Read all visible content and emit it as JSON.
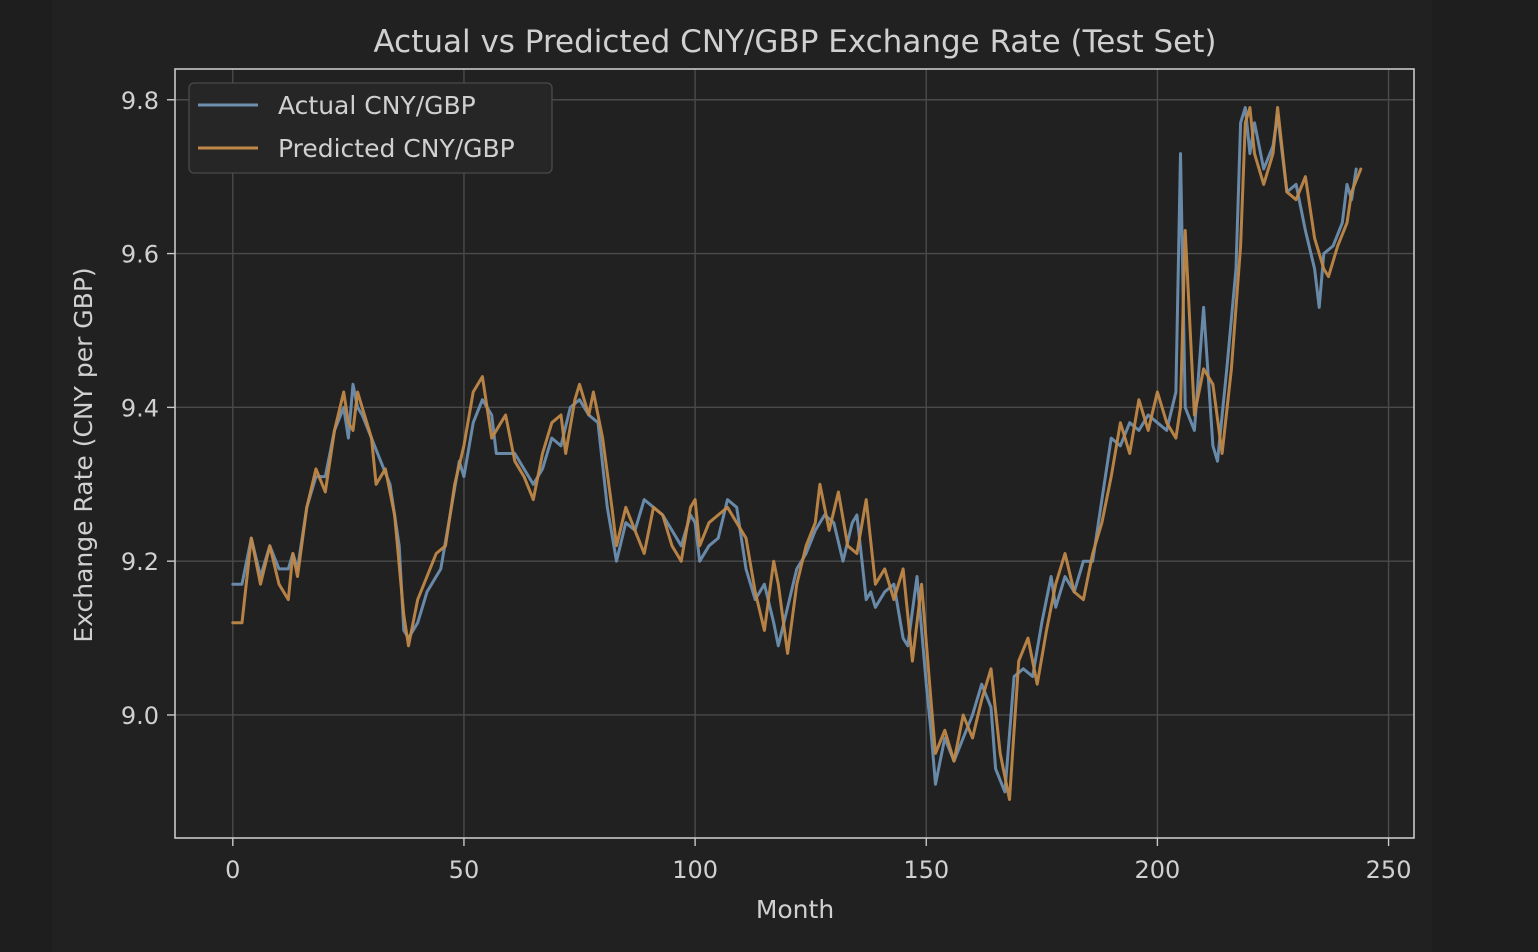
{
  "chart_data": {
    "type": "line",
    "title": "Actual vs Predicted CNY/GBP Exchange Rate (Test Set)",
    "xlabel": "Month",
    "ylabel": "Exchange Rate (CNY per GBP)",
    "xlim": [
      -12.5,
      255.5
    ],
    "ylim": [
      8.84,
      9.84
    ],
    "xticks": [
      0,
      50,
      100,
      150,
      200,
      250
    ],
    "yticks": [
      9.0,
      9.2,
      9.4,
      9.6,
      9.8
    ],
    "xtick_labels": [
      "0",
      "50",
      "100",
      "150",
      "200",
      "250"
    ],
    "ytick_labels": [
      "9.0",
      "9.2",
      "9.4",
      "9.6",
      "9.8"
    ],
    "grid": true,
    "legend_position": "top-left",
    "colors": {
      "background": "#1e1e1e",
      "plot_bg": "#212121",
      "axes": "#c8c8c8",
      "grid": "#4a4a4a",
      "text": "#d0d0d0",
      "legend_bg": "#262626",
      "legend_border": "#4a4a4a"
    },
    "series": [
      {
        "name": "Actual CNY/GBP",
        "color": "#6d8fb0",
        "anchors": [
          [
            0,
            9.17
          ],
          [
            2,
            9.17
          ],
          [
            4,
            9.23
          ],
          [
            6,
            9.18
          ],
          [
            8,
            9.22
          ],
          [
            10,
            9.19
          ],
          [
            12,
            9.19
          ],
          [
            13,
            9.21
          ],
          [
            14,
            9.19
          ],
          [
            16,
            9.27
          ],
          [
            18,
            9.31
          ],
          [
            20,
            9.31
          ],
          [
            22,
            9.37
          ],
          [
            24,
            9.4
          ],
          [
            25,
            9.36
          ],
          [
            26,
            9.43
          ],
          [
            27,
            9.4
          ],
          [
            28,
            9.39
          ],
          [
            30,
            9.36
          ],
          [
            32,
            9.33
          ],
          [
            34,
            9.3
          ],
          [
            36,
            9.22
          ],
          [
            37,
            9.11
          ],
          [
            38,
            9.1
          ],
          [
            40,
            9.12
          ],
          [
            42,
            9.16
          ],
          [
            44,
            9.18
          ],
          [
            45,
            9.19
          ],
          [
            47,
            9.26
          ],
          [
            49,
            9.33
          ],
          [
            50,
            9.31
          ],
          [
            52,
            9.38
          ],
          [
            54,
            9.41
          ],
          [
            56,
            9.39
          ],
          [
            57,
            9.34
          ],
          [
            59,
            9.34
          ],
          [
            61,
            9.34
          ],
          [
            63,
            9.32
          ],
          [
            65,
            9.3
          ],
          [
            67,
            9.32
          ],
          [
            69,
            9.36
          ],
          [
            71,
            9.35
          ],
          [
            73,
            9.4
          ],
          [
            75,
            9.41
          ],
          [
            77,
            9.39
          ],
          [
            79,
            9.38
          ],
          [
            81,
            9.27
          ],
          [
            83,
            9.2
          ],
          [
            85,
            9.25
          ],
          [
            87,
            9.24
          ],
          [
            89,
            9.28
          ],
          [
            91,
            9.27
          ],
          [
            93,
            9.26
          ],
          [
            95,
            9.24
          ],
          [
            97,
            9.22
          ],
          [
            99,
            9.26
          ],
          [
            100,
            9.25
          ],
          [
            101,
            9.2
          ],
          [
            103,
            9.22
          ],
          [
            105,
            9.23
          ],
          [
            107,
            9.28
          ],
          [
            109,
            9.27
          ],
          [
            111,
            9.19
          ],
          [
            113,
            9.15
          ],
          [
            115,
            9.17
          ],
          [
            117,
            9.12
          ],
          [
            118,
            9.09
          ],
          [
            120,
            9.14
          ],
          [
            122,
            9.19
          ],
          [
            124,
            9.21
          ],
          [
            126,
            9.24
          ],
          [
            128,
            9.26
          ],
          [
            130,
            9.25
          ],
          [
            132,
            9.2
          ],
          [
            134,
            9.25
          ],
          [
            135,
            9.26
          ],
          [
            137,
            9.15
          ],
          [
            138,
            9.16
          ],
          [
            139,
            9.14
          ],
          [
            141,
            9.16
          ],
          [
            143,
            9.17
          ],
          [
            145,
            9.1
          ],
          [
            146,
            9.09
          ],
          [
            148,
            9.18
          ],
          [
            150,
            9.04
          ],
          [
            151,
            8.98
          ],
          [
            152,
            8.91
          ],
          [
            154,
            8.97
          ],
          [
            156,
            8.94
          ],
          [
            158,
            8.97
          ],
          [
            160,
            9.0
          ],
          [
            162,
            9.04
          ],
          [
            164,
            9.01
          ],
          [
            165,
            8.93
          ],
          [
            167,
            8.9
          ],
          [
            169,
            9.05
          ],
          [
            171,
            9.06
          ],
          [
            173,
            9.05
          ],
          [
            175,
            9.12
          ],
          [
            177,
            9.18
          ],
          [
            178,
            9.14
          ],
          [
            180,
            9.18
          ],
          [
            182,
            9.16
          ],
          [
            184,
            9.2
          ],
          [
            186,
            9.2
          ],
          [
            188,
            9.28
          ],
          [
            190,
            9.36
          ],
          [
            192,
            9.35
          ],
          [
            194,
            9.38
          ],
          [
            196,
            9.37
          ],
          [
            198,
            9.39
          ],
          [
            200,
            9.38
          ],
          [
            202,
            9.37
          ],
          [
            204,
            9.42
          ],
          [
            205,
            9.73
          ],
          [
            206,
            9.4
          ],
          [
            208,
            9.37
          ],
          [
            210,
            9.53
          ],
          [
            212,
            9.35
          ],
          [
            213,
            9.33
          ],
          [
            215,
            9.45
          ],
          [
            217,
            9.58
          ],
          [
            218,
            9.77
          ],
          [
            219,
            9.79
          ],
          [
            220,
            9.73
          ],
          [
            221,
            9.77
          ],
          [
            223,
            9.71
          ],
          [
            225,
            9.74
          ],
          [
            226,
            9.78
          ],
          [
            228,
            9.68
          ],
          [
            230,
            9.69
          ],
          [
            232,
            9.63
          ],
          [
            234,
            9.58
          ],
          [
            235,
            9.53
          ],
          [
            236,
            9.6
          ],
          [
            238,
            9.61
          ],
          [
            240,
            9.64
          ],
          [
            241,
            9.69
          ],
          [
            242,
            9.67
          ],
          [
            243,
            9.71
          ]
        ]
      },
      {
        "name": "Predicted CNY/GBP",
        "color": "#c08848",
        "anchors": [
          [
            0,
            9.12
          ],
          [
            2,
            9.12
          ],
          [
            4,
            9.23
          ],
          [
            6,
            9.17
          ],
          [
            8,
            9.22
          ],
          [
            10,
            9.17
          ],
          [
            12,
            9.15
          ],
          [
            13,
            9.21
          ],
          [
            14,
            9.18
          ],
          [
            16,
            9.27
          ],
          [
            18,
            9.32
          ],
          [
            20,
            9.29
          ],
          [
            22,
            9.37
          ],
          [
            24,
            9.42
          ],
          [
            25,
            9.38
          ],
          [
            26,
            9.37
          ],
          [
            27,
            9.42
          ],
          [
            28,
            9.4
          ],
          [
            30,
            9.36
          ],
          [
            31,
            9.3
          ],
          [
            33,
            9.32
          ],
          [
            35,
            9.26
          ],
          [
            37,
            9.13
          ],
          [
            38,
            9.09
          ],
          [
            40,
            9.15
          ],
          [
            42,
            9.18
          ],
          [
            44,
            9.21
          ],
          [
            46,
            9.22
          ],
          [
            48,
            9.3
          ],
          [
            50,
            9.35
          ],
          [
            52,
            9.42
          ],
          [
            54,
            9.44
          ],
          [
            56,
            9.36
          ],
          [
            58,
            9.38
          ],
          [
            59,
            9.39
          ],
          [
            61,
            9.33
          ],
          [
            63,
            9.31
          ],
          [
            65,
            9.28
          ],
          [
            67,
            9.34
          ],
          [
            69,
            9.38
          ],
          [
            71,
            9.39
          ],
          [
            72,
            9.34
          ],
          [
            74,
            9.41
          ],
          [
            75,
            9.43
          ],
          [
            77,
            9.39
          ],
          [
            78,
            9.42
          ],
          [
            80,
            9.36
          ],
          [
            82,
            9.27
          ],
          [
            83,
            9.22
          ],
          [
            85,
            9.27
          ],
          [
            87,
            9.24
          ],
          [
            89,
            9.21
          ],
          [
            91,
            9.27
          ],
          [
            93,
            9.26
          ],
          [
            95,
            9.22
          ],
          [
            97,
            9.2
          ],
          [
            99,
            9.27
          ],
          [
            100,
            9.28
          ],
          [
            101,
            9.22
          ],
          [
            103,
            9.25
          ],
          [
            105,
            9.26
          ],
          [
            107,
            9.27
          ],
          [
            109,
            9.25
          ],
          [
            111,
            9.23
          ],
          [
            113,
            9.16
          ],
          [
            115,
            9.11
          ],
          [
            117,
            9.2
          ],
          [
            118,
            9.17
          ],
          [
            120,
            9.08
          ],
          [
            122,
            9.17
          ],
          [
            124,
            9.22
          ],
          [
            126,
            9.25
          ],
          [
            127,
            9.3
          ],
          [
            129,
            9.24
          ],
          [
            131,
            9.29
          ],
          [
            133,
            9.22
          ],
          [
            135,
            9.21
          ],
          [
            137,
            9.28
          ],
          [
            139,
            9.17
          ],
          [
            141,
            9.19
          ],
          [
            143,
            9.15
          ],
          [
            145,
            9.19
          ],
          [
            147,
            9.07
          ],
          [
            149,
            9.17
          ],
          [
            151,
            9.02
          ],
          [
            152,
            8.95
          ],
          [
            154,
            8.98
          ],
          [
            156,
            8.94
          ],
          [
            158,
            9.0
          ],
          [
            160,
            8.97
          ],
          [
            162,
            9.02
          ],
          [
            164,
            9.06
          ],
          [
            166,
            8.95
          ],
          [
            168,
            8.89
          ],
          [
            170,
            9.07
          ],
          [
            172,
            9.1
          ],
          [
            174,
            9.04
          ],
          [
            176,
            9.11
          ],
          [
            178,
            9.17
          ],
          [
            180,
            9.21
          ],
          [
            182,
            9.16
          ],
          [
            184,
            9.15
          ],
          [
            186,
            9.21
          ],
          [
            188,
            9.25
          ],
          [
            190,
            9.31
          ],
          [
            192,
            9.38
          ],
          [
            194,
            9.34
          ],
          [
            196,
            9.41
          ],
          [
            198,
            9.37
          ],
          [
            200,
            9.42
          ],
          [
            202,
            9.38
          ],
          [
            204,
            9.36
          ],
          [
            205,
            9.4
          ],
          [
            206,
            9.63
          ],
          [
            208,
            9.39
          ],
          [
            210,
            9.45
          ],
          [
            212,
            9.43
          ],
          [
            214,
            9.34
          ],
          [
            216,
            9.45
          ],
          [
            218,
            9.61
          ],
          [
            219,
            9.77
          ],
          [
            220,
            9.79
          ],
          [
            221,
            9.73
          ],
          [
            223,
            9.69
          ],
          [
            225,
            9.73
          ],
          [
            226,
            9.79
          ],
          [
            228,
            9.68
          ],
          [
            230,
            9.67
          ],
          [
            232,
            9.7
          ],
          [
            234,
            9.62
          ],
          [
            236,
            9.58
          ],
          [
            237,
            9.57
          ],
          [
            239,
            9.61
          ],
          [
            241,
            9.64
          ],
          [
            242,
            9.68
          ],
          [
            244,
            9.71
          ]
        ]
      }
    ]
  }
}
